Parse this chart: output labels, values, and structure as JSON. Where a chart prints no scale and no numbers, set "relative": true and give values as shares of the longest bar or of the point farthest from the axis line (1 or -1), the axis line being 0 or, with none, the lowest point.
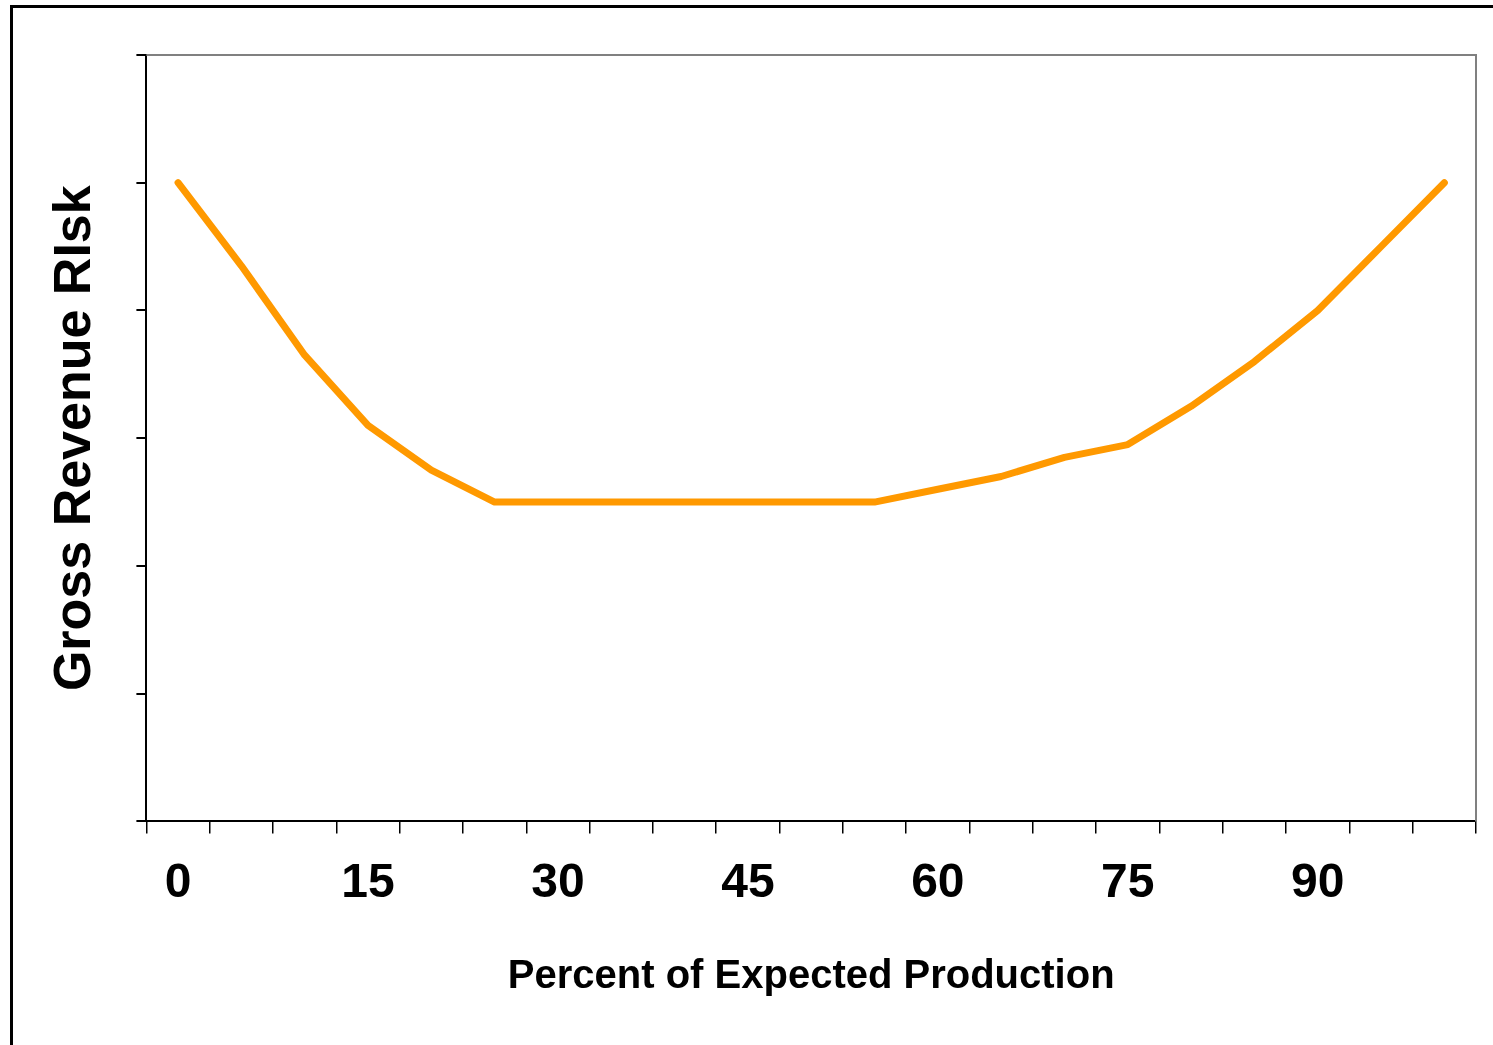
{
  "chart_data": {
    "type": "line",
    "xlabel": "Percent of Expected Production",
    "ylabel": "Gross Revenue RIsk",
    "relative": true,
    "tick_labels": "x",
    "grid": false,
    "legend": false,
    "marker": "none",
    "line_style": "solid",
    "categories": [
      "0",
      null,
      null,
      "15",
      null,
      null,
      "30",
      null,
      null,
      "45",
      null,
      null,
      "60",
      null,
      null,
      "75",
      null,
      null,
      "90",
      null,
      null
    ],
    "series": [
      {
        "color": "#ff9900",
        "values": [
          1,
          0.87,
          0.73,
          0.62,
          0.55,
          0.5,
          0.5,
          0.5,
          0.5,
          0.5,
          0.5,
          0.5,
          0.52,
          0.54,
          0.57,
          0.59,
          0.65,
          0.72,
          0.8,
          0.9,
          1
        ]
      }
    ]
  }
}
